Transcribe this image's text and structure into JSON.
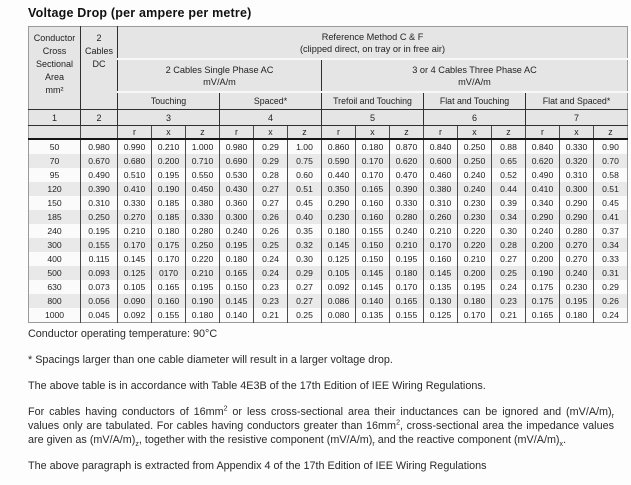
{
  "title": "Voltage Drop (per ampere per metre)",
  "table": {
    "header": {
      "conductor": "Conductor\nCross\nSectional\nArea\nmm²",
      "dc": "2\nCables\nDC",
      "ref_method": "Reference Method C & F\n(clipped direct, on tray or in free air)",
      "single_phase": "2 Cables Single Phase AC\nmV/A/m",
      "three_phase": "3 or 4 Cables Three Phase AC\nmV/A/m",
      "groups": [
        "Touching",
        "Spaced*",
        "Trefoil and Touching",
        "Flat and Touching",
        "Flat and Spaced*"
      ],
      "col_numbers": [
        "1",
        "2",
        "3",
        "4",
        "5",
        "6",
        "7"
      ],
      "rxz": [
        "r",
        "x",
        "z"
      ]
    },
    "rows": [
      {
        "area": "50",
        "dc": "0.980",
        "values": [
          "0.990",
          "0.210",
          "1.000",
          "0.980",
          "0.29",
          "1.00",
          "0.860",
          "0.180",
          "0.870",
          "0.840",
          "0.250",
          "0.88",
          "0.840",
          "0.330",
          "0.90"
        ]
      },
      {
        "area": "70",
        "dc": "0.670",
        "values": [
          "0.680",
          "0.200",
          "0.710",
          "0.690",
          "0.29",
          "0.75",
          "0.590",
          "0.170",
          "0.620",
          "0.600",
          "0.250",
          "0.65",
          "0.620",
          "0.320",
          "0.70"
        ]
      },
      {
        "area": "95",
        "dc": "0.490",
        "values": [
          "0.510",
          "0.195",
          "0.550",
          "0.530",
          "0.28",
          "0.60",
          "0.440",
          "0.170",
          "0.470",
          "0.460",
          "0.240",
          "0.52",
          "0.490",
          "0.310",
          "0.58"
        ]
      },
      {
        "area": "120",
        "dc": "0.390",
        "values": [
          "0.410",
          "0.190",
          "0.450",
          "0.430",
          "0.27",
          "0.51",
          "0.350",
          "0.165",
          "0.390",
          "0.380",
          "0.240",
          "0.44",
          "0.410",
          "0.300",
          "0.51"
        ]
      },
      {
        "area": "150",
        "dc": "0.310",
        "values": [
          "0.330",
          "0.185",
          "0.380",
          "0.360",
          "0.27",
          "0.45",
          "0.290",
          "0.160",
          "0.330",
          "0.310",
          "0.230",
          "0.39",
          "0.340",
          "0.290",
          "0.45"
        ]
      },
      {
        "area": "185",
        "dc": "0.250",
        "values": [
          "0.270",
          "0.185",
          "0.330",
          "0.300",
          "0.26",
          "0.40",
          "0.230",
          "0.160",
          "0.280",
          "0.260",
          "0.230",
          "0.34",
          "0.290",
          "0.290",
          "0.41"
        ]
      },
      {
        "area": "240",
        "dc": "0.195",
        "values": [
          "0.210",
          "0.180",
          "0.280",
          "0.240",
          "0.26",
          "0.35",
          "0.180",
          "0.155",
          "0.240",
          "0.210",
          "0.220",
          "0.30",
          "0.240",
          "0.280",
          "0.37"
        ]
      },
      {
        "area": "300",
        "dc": "0.155",
        "values": [
          "0.170",
          "0.175",
          "0.250",
          "0.195",
          "0.25",
          "0.32",
          "0.145",
          "0.150",
          "0.210",
          "0.170",
          "0.220",
          "0.28",
          "0.200",
          "0.270",
          "0.34"
        ]
      },
      {
        "area": "400",
        "dc": "0.115",
        "values": [
          "0.145",
          "0.170",
          "0.220",
          "0.180",
          "0.24",
          "0.30",
          "0.125",
          "0.150",
          "0.195",
          "0.160",
          "0.210",
          "0.27",
          "0.200",
          "0.270",
          "0.33"
        ]
      },
      {
        "area": "500",
        "dc": "0.093",
        "values": [
          "0.125",
          "0170",
          "0.210",
          "0.165",
          "0.24",
          "0.29",
          "0.105",
          "0.145",
          "0.180",
          "0.145",
          "0.200",
          "0.25",
          "0.190",
          "0.240",
          "0.31"
        ]
      },
      {
        "area": "630",
        "dc": "0.073",
        "values": [
          "0.105",
          "0.165",
          "0.195",
          "0.150",
          "0.23",
          "0.27",
          "0.092",
          "0.145",
          "0.170",
          "0.135",
          "0.195",
          "0.24",
          "0.175",
          "0.230",
          "0.29"
        ]
      },
      {
        "area": "800",
        "dc": "0.056",
        "values": [
          "0.090",
          "0.160",
          "0.190",
          "0.145",
          "0.23",
          "0.27",
          "0.086",
          "0.140",
          "0.165",
          "0.130",
          "0.180",
          "0.23",
          "0.175",
          "0.195",
          "0.26"
        ]
      },
      {
        "area": "1000",
        "dc": "0.045",
        "values": [
          "0.092",
          "0.155",
          "0.180",
          "0.140",
          "0.21",
          "0.25",
          "0.080",
          "0.135",
          "0.155",
          "0.125",
          "0.170",
          "0.21",
          "0.165",
          "0.180",
          "0.24"
        ]
      }
    ]
  },
  "notes": {
    "operating_temp": "Conductor operating temperature: 90°C",
    "spacing_note": "* Spacings larger than one cable diameter will result in a larger voltage drop.",
    "accordance_note": "The above table is in accordance with Table 4E3B of the 17th Edition of IEE Wiring Regulations.",
    "paragraph": [
      {
        "t": "For cables having conductors of 16mm"
      },
      {
        "sup": "2"
      },
      {
        "t": " or less cross-sectional area their inductances can be ignored and (mV/A/m)"
      },
      {
        "sub": "r"
      },
      {
        "t": " values only are tabulated. For cables having conductors greater than 16mm"
      },
      {
        "sup": "2"
      },
      {
        "t": ", cross-sectional area the impedance values are given as (mV/A/m)"
      },
      {
        "sub": "z"
      },
      {
        "t": ", together with the resistive component (mV/A/m)"
      },
      {
        "sub": "r"
      },
      {
        "t": " and the reactive component (mV/A/m)"
      },
      {
        "sub": "x"
      },
      {
        "t": "."
      }
    ],
    "extract_note": "The above paragraph is extracted from Appendix 4 of the 17th Edition of IEE Wiring Regulations"
  }
}
